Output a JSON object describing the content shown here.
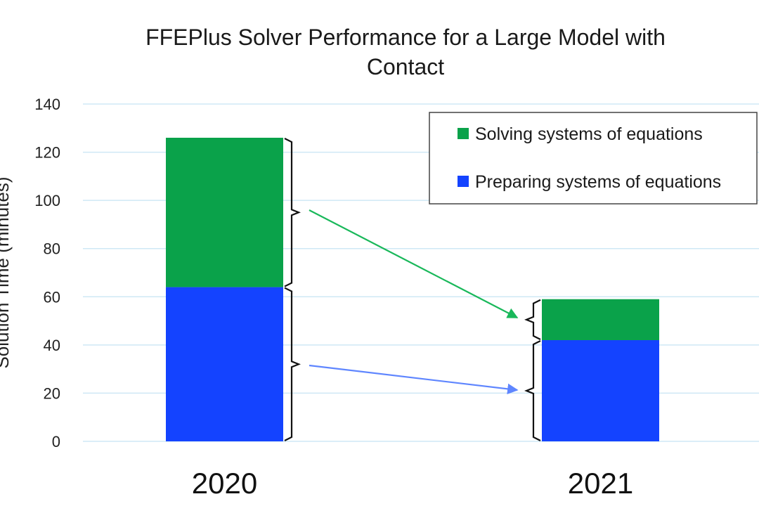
{
  "colors": {
    "solving": "#0aa24a",
    "preparing": "#1443ff",
    "grid": "#cfe8f5",
    "green_arrow": "#19b85a",
    "blue_arrow": "#5f86ff"
  },
  "chart_data": {
    "type": "bar",
    "stacked": true,
    "title": "FFEPlus Solver Performance for a Large Model with Contact",
    "title_lines": [
      "FFEPlus Solver Performance for a Large Model with",
      "Contact"
    ],
    "ylabel": "Solution Time (minutes)",
    "xlabel": "",
    "categories": [
      "2020",
      "2021"
    ],
    "ylim": [
      0,
      140
    ],
    "yticks": [
      0,
      20,
      40,
      60,
      80,
      100,
      120,
      140
    ],
    "grid": true,
    "legend_position": "top-right",
    "series": [
      {
        "name": "Preparing systems of equations",
        "color_key": "preparing",
        "values": [
          64,
          42
        ]
      },
      {
        "name": "Solving systems of equations",
        "color_key": "solving",
        "values": [
          62,
          17
        ]
      }
    ],
    "legend_order": [
      "Solving systems of equations",
      "Preparing systems of equations"
    ]
  }
}
